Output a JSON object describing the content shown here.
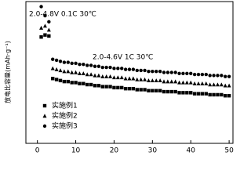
{
  "chart_data": {
    "type": "scatter",
    "y_label": "放电比容量(mAh·g⁻¹)",
    "annotations": [
      "2.0-4.8V  0.1C  30℃",
      "2.0-4.6V  1C  30℃"
    ],
    "x": [
      1,
      2,
      3,
      4,
      5,
      6,
      7,
      8,
      9,
      10,
      11,
      12,
      13,
      14,
      15,
      16,
      17,
      18,
      19,
      20,
      21,
      22,
      23,
      24,
      25,
      26,
      27,
      28,
      29,
      30,
      31,
      32,
      33,
      34,
      35,
      36,
      37,
      38,
      39,
      40,
      41,
      42,
      43,
      44,
      45,
      46,
      47,
      48,
      49,
      50
    ],
    "series": [
      {
        "name": "实施例1",
        "color": "#000000",
        "marker": "square",
        "values": [
          255,
          257,
          256,
          214,
          213,
          212,
          211,
          211,
          210,
          210,
          209,
          209,
          208,
          208,
          207,
          207,
          206,
          206,
          206,
          205,
          205,
          205,
          204,
          204,
          204,
          203,
          203,
          203,
          202,
          202,
          202,
          202,
          201,
          201,
          201,
          201,
          200,
          200,
          200,
          200,
          199,
          199,
          199,
          199,
          198,
          198,
          198,
          198,
          197,
          197
        ]
      },
      {
        "name": "实施例2",
        "color": "#000000",
        "marker": "triangle",
        "values": [
          264,
          266,
          262,
          224,
          223,
          222,
          221,
          221,
          220,
          220,
          219,
          219,
          218,
          218,
          217,
          217,
          216,
          216,
          216,
          215,
          215,
          215,
          214,
          214,
          214,
          213,
          213,
          213,
          212,
          212,
          212,
          212,
          211,
          211,
          211,
          211,
          210,
          210,
          210,
          210,
          209,
          209,
          209,
          209,
          208,
          208,
          208,
          208,
          207,
          207
        ]
      },
      {
        "name": "实施例3",
        "color": "#000000",
        "marker": "circle",
        "values": [
          285,
          276,
          270,
          233,
          232,
          231,
          230,
          230,
          229,
          229,
          228,
          228,
          227,
          227,
          226,
          226,
          225,
          225,
          225,
          224,
          224,
          224,
          223,
          223,
          223,
          222,
          222,
          222,
          221,
          221,
          221,
          221,
          220,
          220,
          220,
          220,
          219,
          219,
          219,
          219,
          218,
          218,
          218,
          218,
          217,
          217,
          217,
          217,
          216,
          216
        ]
      }
    ],
    "xlim": [
      -3,
      51
    ],
    "ylim": [
      150,
      290
    ],
    "xticks": [
      0,
      10,
      20,
      30,
      40,
      50
    ],
    "legend": "lower-left"
  }
}
